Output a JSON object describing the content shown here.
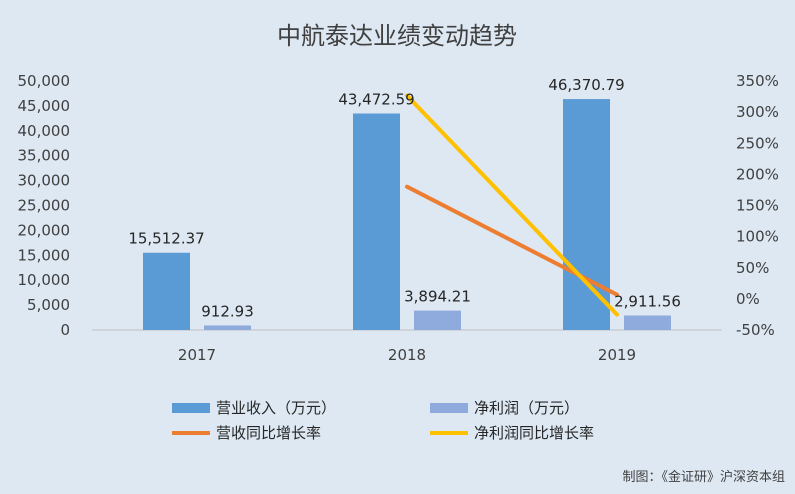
{
  "chart_data": {
    "type": "bar",
    "title": "中航泰达业绩变动趋势",
    "categories": [
      "2017",
      "2018",
      "2019"
    ],
    "series": [
      {
        "name": "营业收入（万元）",
        "type": "bar",
        "axis": "left",
        "color": "#5b9bd5",
        "values": [
          15512.37,
          43472.59,
          46370.79
        ],
        "labels": [
          "15,512.37",
          "43,472.59",
          "46,370.79"
        ]
      },
      {
        "name": "净利润（万元）",
        "type": "bar",
        "axis": "left",
        "color": "#8faadc",
        "values": [
          912.93,
          3894.21,
          2911.56
        ],
        "labels": [
          "912.93",
          "3,894.21",
          "2,911.56"
        ]
      },
      {
        "name": "营收同比增长率",
        "type": "line",
        "axis": "right",
        "color": "#ed7d31",
        "values": [
          null,
          180.2,
          6.7
        ]
      },
      {
        "name": "净利润同比增长率",
        "type": "line",
        "axis": "right",
        "color": "#ffc000",
        "values": [
          null,
          326.6,
          -25.2
        ]
      }
    ],
    "y_left": {
      "min": 0,
      "max": 50000,
      "step": 5000,
      "ticks": [
        "0",
        "5,000",
        "10,000",
        "15,000",
        "20,000",
        "25,000",
        "30,000",
        "35,000",
        "40,000",
        "45,000",
        "50,000"
      ]
    },
    "y_right": {
      "min": -50,
      "max": 350,
      "step": 50,
      "ticks": [
        "-50%",
        "0%",
        "50%",
        "100%",
        "150%",
        "200%",
        "250%",
        "300%",
        "350%"
      ]
    },
    "legend_position": "bottom",
    "grid": false
  },
  "credit": "制图：《金证研》沪深资本组"
}
